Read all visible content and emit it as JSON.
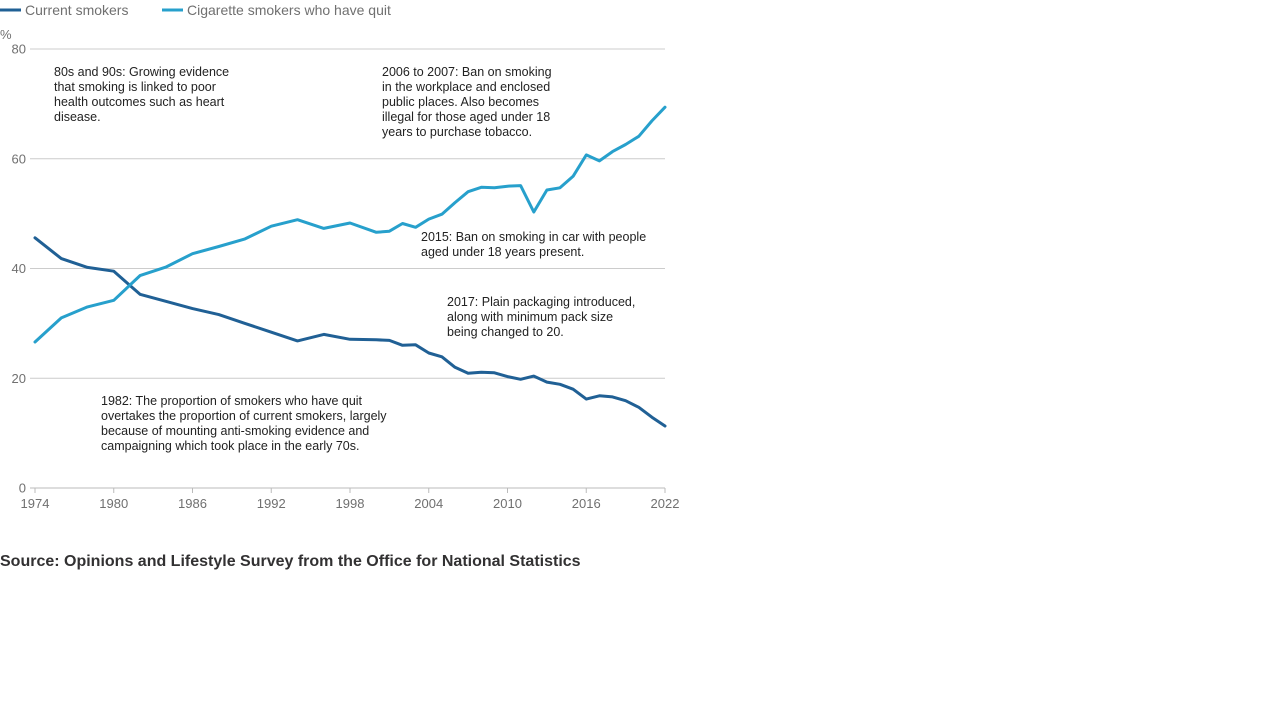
{
  "chart_data": {
    "type": "line",
    "unit_label": "%",
    "xlim": [
      1974,
      2022
    ],
    "ylim": [
      0,
      80
    ],
    "x_ticks": [
      "1974",
      "1980",
      "1986",
      "1992",
      "1998",
      "2004",
      "2010",
      "2016",
      "2022"
    ],
    "y_ticks": [
      "0",
      "20",
      "40",
      "60",
      "80"
    ],
    "grid": true,
    "legend_position": "top-left",
    "x": [
      1974,
      1976,
      1978,
      1980,
      1982,
      1984,
      1986,
      1988,
      1990,
      1992,
      1994,
      1996,
      1998,
      2000,
      2001,
      2002,
      2003,
      2004,
      2005,
      2006,
      2007,
      2008,
      2009,
      2010,
      2011,
      2012,
      2013,
      2014,
      2015,
      2016,
      2017,
      2018,
      2019,
      2020,
      2021,
      2022
    ],
    "series": [
      {
        "name": "Current smokers",
        "color": "#206095",
        "values": [
          45.6,
          41.8,
          40.2,
          39.5,
          35.3,
          34.0,
          32.7,
          31.6,
          30.0,
          28.4,
          26.8,
          28.0,
          27.1,
          27.0,
          26.9,
          26.0,
          26.1,
          24.6,
          23.9,
          22.0,
          20.9,
          21.1,
          21.0,
          20.3,
          19.8,
          20.4,
          19.3,
          18.9,
          18.0,
          16.2,
          16.8,
          16.6,
          15.9,
          14.7,
          12.9,
          11.3
        ]
      },
      {
        "name": "Cigarette smokers who have quit",
        "color": "#27a0cc",
        "values": [
          26.6,
          31.0,
          33.0,
          34.2,
          38.7,
          40.3,
          42.7,
          44.0,
          45.4,
          47.7,
          48.9,
          47.3,
          48.3,
          46.6,
          46.8,
          48.2,
          47.5,
          49.0,
          49.9,
          52.0,
          54.0,
          54.8,
          54.7,
          55.0,
          55.1,
          50.3,
          54.3,
          54.7,
          56.8,
          60.7,
          59.6,
          61.3,
          62.6,
          64.1,
          66.9,
          69.4
        ]
      }
    ],
    "annotations": [
      [
        "80s and 90s: Growing evidence",
        "that smoking is linked to poor",
        "health outcomes such as heart",
        "disease."
      ],
      [
        "2006 to 2007: Ban on smoking",
        "in the workplace and enclosed",
        "public places. Also becomes",
        "illegal for those aged under 18",
        "years to purchase tobacco."
      ],
      [
        "2015: Ban on smoking in car with people",
        "aged under 18 years present."
      ],
      [
        "2017: Plain packaging introduced,",
        "along with minimum pack size",
        "being changed to 20."
      ],
      [
        "1982: The proportion of smokers who have quit",
        "overtakes the proportion of current smokers, largely",
        "because of mounting anti-smoking evidence and",
        "campaigning which took place in the early 70s."
      ]
    ]
  },
  "source": "Source: Opinions and Lifestyle Survey from the Office for National Statistics"
}
